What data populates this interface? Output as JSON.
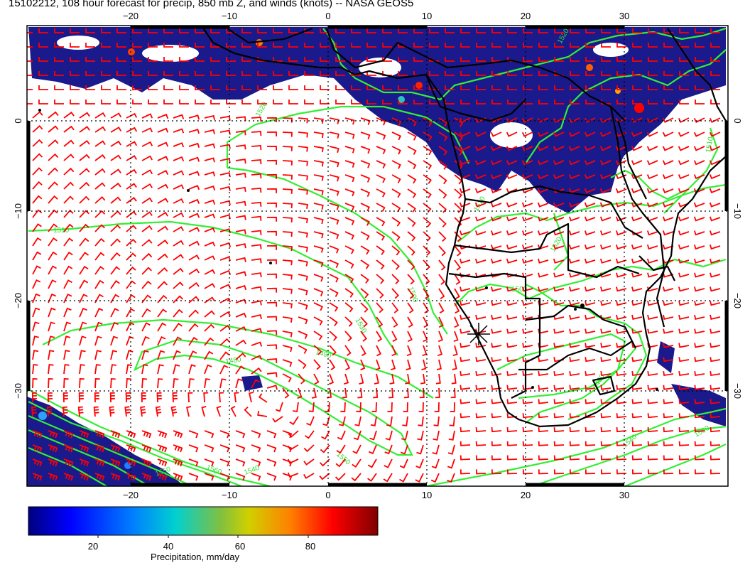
{
  "title": "15102212, 108 hour forecast for precip, 850 mb Z, and winds (knots) -- NASA GEOS5",
  "map": {
    "lon_labels": [
      "−20",
      "−10",
      "0",
      "10",
      "20",
      "30"
    ],
    "lon_values": [
      -20,
      -10,
      0,
      10,
      20,
      30
    ],
    "lat_labels": [
      "0",
      "−10",
      "−20",
      "−30"
    ],
    "lat_values": [
      0,
      -10,
      -20,
      -30
    ],
    "lon_range": [
      -30,
      40
    ],
    "lat_range": [
      -40,
      10
    ],
    "contour_labels": [
      "1520",
      "1510",
      "1500",
      "1480",
      "1490",
      "1550",
      "1530",
      "1510",
      "1500",
      "1520",
      "1540",
      "1550",
      "1560",
      "1500",
      "1510",
      "1520",
      "1490",
      "1540"
    ],
    "colors": {
      "precip_base": "#1a1a8c",
      "precip_light": "#2a3aa8",
      "wind_barb": "#ff0000",
      "contour": "#33ee33",
      "coastline": "#000000",
      "grid": "#000000"
    },
    "marker": "asterisk"
  },
  "colorbar": {
    "title": "Precipitation, mm/day",
    "tick_labels": [
      "20",
      "40",
      "60",
      "80"
    ],
    "tick_values": [
      20,
      40,
      60,
      80
    ],
    "range": [
      0,
      100
    ],
    "colors": [
      "#00007f",
      "#0000ff",
      "#0080ff",
      "#00d0d0",
      "#80c040",
      "#d0d000",
      "#ff8000",
      "#ff0000",
      "#800000"
    ]
  }
}
